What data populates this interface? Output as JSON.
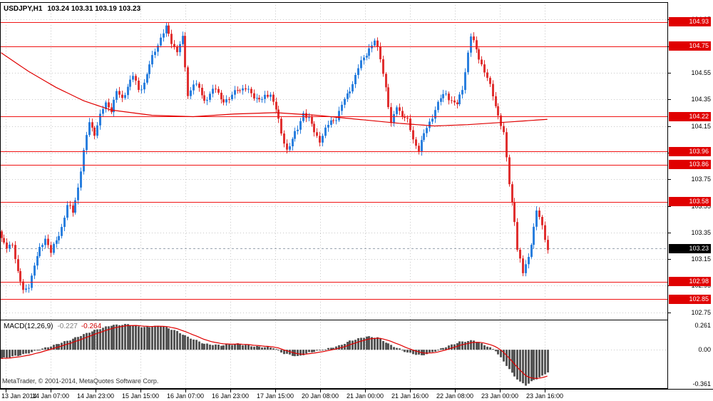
{
  "window": {
    "title_symbol": "USDJPY,H1",
    "title_ohlc": "103.24 103.31 103.19 103.23",
    "copyright": "MetaTrader, © 2001-2014, MetaQuotes Software Corp."
  },
  "colors": {
    "background": "#FFFFFF",
    "text": "#000000",
    "border": "#000000",
    "grid": "#C8C8C8",
    "bull": "#2A7FDE",
    "bear": "#E03030",
    "level_line": "#F01414",
    "badge_bg": "#E00000",
    "badge_text": "#FFFFFF",
    "current_badge_bg": "#000000",
    "ma_line": "#E00000",
    "bid_line": "#9AA4B0",
    "macd_histogram": "#555555",
    "macd_signal": "#E00000"
  },
  "chart_data": {
    "type": "candlestick",
    "title": "USDJPY,H1",
    "symbol": "USDJPY",
    "timeframe": "H1",
    "last_ohlc": {
      "open": 103.24,
      "high": 103.31,
      "low": 103.19,
      "close": 103.23
    },
    "bars_rendered": 200,
    "ylim": [
      102.69,
      105.08
    ],
    "y_ticks": [
      104.95,
      104.75,
      104.55,
      104.35,
      104.15,
      103.95,
      103.75,
      103.55,
      103.35,
      103.15,
      102.95,
      102.75
    ],
    "x_ticks": [
      "13 Jan 2014",
      "14 Jan 07:00",
      "14 Jan 23:00",
      "15 Jan 15:00",
      "16 Jan 07:00",
      "16 Jan 23:00",
      "17 Jan 15:00",
      "20 Jan 08:00",
      "21 Jan 00:00",
      "21 Jan 16:00",
      "22 Jan 08:00",
      "23 Jan 00:00",
      "23 Jan 16:00"
    ],
    "horizontal_levels": [
      104.93,
      104.75,
      104.22,
      103.96,
      103.86,
      103.58,
      102.98,
      102.85
    ],
    "current_price": 103.23,
    "close_waypoints": [
      [
        0,
        103.3
      ],
      [
        2,
        103.22
      ],
      [
        4,
        103.28
      ],
      [
        6,
        103.05
      ],
      [
        8,
        102.9
      ],
      [
        10,
        102.96
      ],
      [
        12,
        103.1
      ],
      [
        14,
        103.22
      ],
      [
        16,
        103.32
      ],
      [
        18,
        103.2
      ],
      [
        20,
        103.28
      ],
      [
        22,
        103.4
      ],
      [
        24,
        103.55
      ],
      [
        26,
        103.5
      ],
      [
        28,
        103.7
      ],
      [
        30,
        103.95
      ],
      [
        32,
        104.18
      ],
      [
        34,
        104.1
      ],
      [
        36,
        104.22
      ],
      [
        38,
        104.32
      ],
      [
        40,
        104.28
      ],
      [
        42,
        104.4
      ],
      [
        44,
        104.35
      ],
      [
        46,
        104.46
      ],
      [
        48,
        104.52
      ],
      [
        50,
        104.42
      ],
      [
        52,
        104.48
      ],
      [
        54,
        104.6
      ],
      [
        56,
        104.72
      ],
      [
        58,
        104.82
      ],
      [
        60,
        104.88
      ],
      [
        62,
        104.78
      ],
      [
        64,
        104.72
      ],
      [
        66,
        104.8
      ],
      [
        68,
        104.38
      ],
      [
        70,
        104.48
      ],
      [
        72,
        104.42
      ],
      [
        74,
        104.34
      ],
      [
        76,
        104.4
      ],
      [
        78,
        104.42
      ],
      [
        80,
        104.36
      ],
      [
        83,
        104.34
      ],
      [
        86,
        104.44
      ],
      [
        89,
        104.42
      ],
      [
        92,
        104.38
      ],
      [
        95,
        104.34
      ],
      [
        98,
        104.4
      ],
      [
        100,
        104.28
      ],
      [
        102,
        104.08
      ],
      [
        104,
        103.98
      ],
      [
        106,
        104.05
      ],
      [
        108,
        104.12
      ],
      [
        110,
        104.26
      ],
      [
        112,
        104.2
      ],
      [
        114,
        104.1
      ],
      [
        116,
        104.05
      ],
      [
        118,
        104.12
      ],
      [
        120,
        104.18
      ],
      [
        122,
        104.22
      ],
      [
        124,
        104.3
      ],
      [
        126,
        104.38
      ],
      [
        128,
        104.48
      ],
      [
        130,
        104.58
      ],
      [
        132,
        104.66
      ],
      [
        134,
        104.74
      ],
      [
        136,
        104.78
      ],
      [
        138,
        104.66
      ],
      [
        140,
        104.45
      ],
      [
        142,
        104.15
      ],
      [
        144,
        104.3
      ],
      [
        146,
        104.24
      ],
      [
        148,
        104.18
      ],
      [
        150,
        104.05
      ],
      [
        152,
        103.98
      ],
      [
        154,
        104.08
      ],
      [
        156,
        104.18
      ],
      [
        158,
        104.28
      ],
      [
        160,
        104.35
      ],
      [
        162,
        104.4
      ],
      [
        164,
        104.34
      ],
      [
        166,
        104.3
      ],
      [
        168,
        104.44
      ],
      [
        170,
        104.7
      ],
      [
        171,
        104.82
      ],
      [
        173,
        104.72
      ],
      [
        175,
        104.62
      ],
      [
        177,
        104.5
      ],
      [
        179,
        104.38
      ],
      [
        181,
        104.24
      ],
      [
        183,
        104.08
      ],
      [
        185,
        103.72
      ],
      [
        187,
        103.45
      ],
      [
        188,
        103.22
      ],
      [
        190,
        103.04
      ],
      [
        192,
        103.18
      ],
      [
        194,
        103.38
      ],
      [
        195,
        103.5
      ],
      [
        196,
        103.46
      ],
      [
        197,
        103.4
      ],
      [
        198,
        103.32
      ],
      [
        199,
        103.23
      ]
    ],
    "ma_waypoints": [
      [
        0,
        104.7
      ],
      [
        10,
        104.56
      ],
      [
        20,
        104.44
      ],
      [
        30,
        104.34
      ],
      [
        40,
        104.27
      ],
      [
        55,
        104.23
      ],
      [
        70,
        104.22
      ],
      [
        85,
        104.24
      ],
      [
        100,
        104.25
      ],
      [
        115,
        104.23
      ],
      [
        130,
        104.2
      ],
      [
        145,
        104.17
      ],
      [
        158,
        104.15
      ],
      [
        170,
        104.16
      ],
      [
        185,
        104.18
      ],
      [
        199,
        104.2
      ]
    ],
    "macd": {
      "label": "MACD(12,26,9)",
      "value_main": "-0.227",
      "value_signal": "-0.264",
      "ylim": [
        -0.4,
        0.3
      ],
      "y_tick_labels": [
        "0.261",
        "0.00",
        "-0.361"
      ],
      "y_tick_values": [
        0.261,
        0,
        -0.361
      ],
      "signal_period": 9,
      "main_waypoints": [
        [
          0,
          -0.09
        ],
        [
          8,
          -0.05
        ],
        [
          15,
          0.01
        ],
        [
          25,
          0.1
        ],
        [
          33,
          0.19
        ],
        [
          40,
          0.25
        ],
        [
          46,
          0.26
        ],
        [
          52,
          0.23
        ],
        [
          58,
          0.245
        ],
        [
          63,
          0.2
        ],
        [
          68,
          0.13
        ],
        [
          74,
          0.06
        ],
        [
          80,
          0.045
        ],
        [
          86,
          0.06
        ],
        [
          92,
          0.035
        ],
        [
          99,
          0.02
        ],
        [
          103,
          -0.04
        ],
        [
          108,
          -0.07
        ],
        [
          112,
          -0.03
        ],
        [
          118,
          0.005
        ],
        [
          123,
          0.04
        ],
        [
          127,
          0.09
        ],
        [
          133,
          0.135
        ],
        [
          137,
          0.125
        ],
        [
          141,
          0.06
        ],
        [
          144,
          0.02
        ],
        [
          148,
          -0.03
        ],
        [
          153,
          -0.06
        ],
        [
          157,
          -0.025
        ],
        [
          161,
          0.02
        ],
        [
          167,
          0.08
        ],
        [
          172,
          0.095
        ],
        [
          176,
          0.05
        ],
        [
          180,
          -0.01
        ],
        [
          183,
          -0.12
        ],
        [
          186,
          -0.24
        ],
        [
          189,
          -0.33
        ],
        [
          191,
          -0.362
        ],
        [
          194,
          -0.31
        ],
        [
          197,
          -0.27
        ],
        [
          199,
          -0.227
        ]
      ]
    }
  }
}
